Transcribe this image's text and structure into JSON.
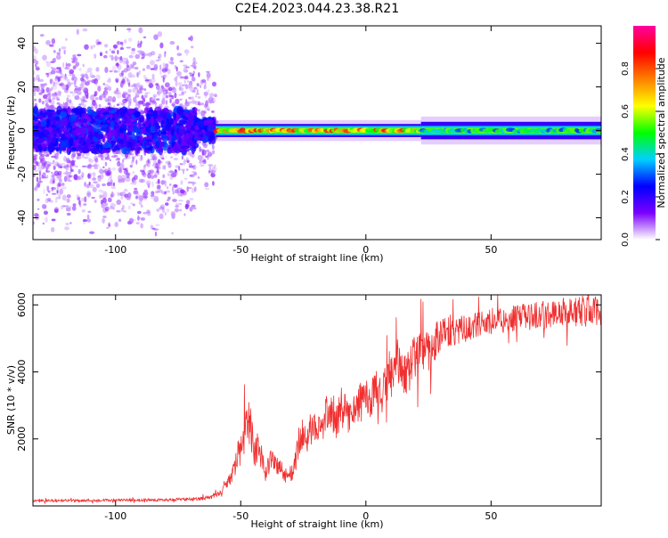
{
  "title": "C2E4.2023.044.23.38.R21",
  "colors": {
    "snr_line": "#f03030",
    "frame": "#000000"
  },
  "chart_data": [
    {
      "type": "heatmap",
      "xlabel": "Height of straight line (km)",
      "ylabel": "Frequency (Hz)",
      "xlim": [
        -133,
        94
      ],
      "ylim": [
        -50,
        48
      ],
      "x_ticks": [
        -100,
        -50,
        0,
        50
      ],
      "y_ticks": [
        -40,
        -20,
        0,
        20,
        40
      ],
      "colorbar": {
        "label": "Normalized spectral amplitude",
        "range": [
          0,
          1
        ],
        "ticks": [
          0.0,
          0.2,
          0.4,
          0.6,
          0.8
        ],
        "tick_labels": [
          "0.0",
          "0.2",
          "0.4",
          "0.6",
          "0.8"
        ],
        "stops": [
          "#ffffff",
          "#7a00ff",
          "#0000ff",
          "#00d0ff",
          "#00ff00",
          "#ffff00",
          "#ff8000",
          "#ff0000",
          "#ff00a0"
        ]
      },
      "segments": [
        {
          "x": [
            -133,
            -68
          ],
          "band_center_hz": 0,
          "core_half_width_hz": 6,
          "scatter_half_width_hz": 48,
          "amplitude": 0.12
        },
        {
          "x": [
            -68,
            -60
          ],
          "band_center_hz": 0,
          "core_half_width_hz": 3,
          "scatter_half_width_hz": 30,
          "amplitude": 0.35
        },
        {
          "x": [
            -60,
            22
          ],
          "band_center_hz": 0,
          "core_half_width_hz": 1.5,
          "envelope_half_width_hz": 3,
          "amplitude": 0.9
        },
        {
          "x": [
            22,
            94
          ],
          "band_center_hz": 0,
          "core_half_width_hz": 1.5,
          "envelope_half_width_hz": 4,
          "amplitude": 0.55
        }
      ]
    },
    {
      "type": "line",
      "xlabel": "Height of straight line (km)",
      "ylabel": "SNR (10 * v/v)",
      "xlim": [
        -133,
        94
      ],
      "ylim": [
        0,
        6300
      ],
      "x_ticks": [
        -100,
        -50,
        0,
        50
      ],
      "y_ticks": [
        2000,
        4000,
        6000
      ],
      "series": [
        {
          "x": [
            -133,
            -120,
            -100,
            -80,
            -70,
            -62,
            -58,
            -55,
            -52,
            -50,
            -48,
            -46,
            -45,
            -43,
            -40,
            -38,
            -35,
            -32,
            -30,
            -28,
            -26,
            -24,
            -22,
            -20,
            -18,
            -16,
            -14,
            -12,
            -10,
            -8,
            -6,
            -4,
            -2,
            0,
            2,
            4,
            6,
            8,
            10,
            12,
            14,
            16,
            18,
            20,
            22,
            25,
            28,
            30,
            32,
            35,
            40,
            50,
            60,
            70,
            80,
            94
          ],
          "y": [
            150,
            160,
            170,
            180,
            200,
            250,
            400,
            700,
            1200,
            1800,
            2400,
            2600,
            1500,
            1800,
            1000,
            1400,
            1200,
            900,
            1000,
            1300,
            2200,
            1900,
            2300,
            2500,
            2200,
            2700,
            2900,
            2500,
            3000,
            2700,
            2600,
            3000,
            3100,
            3300,
            3200,
            3400,
            3300,
            3600,
            3800,
            4300,
            4400,
            3800,
            4200,
            4500,
            4800,
            4600,
            4900,
            5200,
            5300,
            5200,
            5300,
            5500,
            5600,
            5700,
            5800,
            5800
          ],
          "noise_amplitude": [
            30,
            40,
            40,
            40,
            50,
            60,
            80,
            150,
            350,
            600,
            700,
            700,
            500,
            450,
            300,
            400,
            300,
            250,
            300,
            350,
            600,
            400,
            500,
            500,
            450,
            550,
            600,
            500,
            600,
            550,
            500,
            550,
            600,
            650,
            600,
            650,
            600,
            650,
            700,
            750,
            700,
            650,
            650,
            700,
            700,
            600,
            600,
            550,
            550,
            450,
            400,
            380,
            400,
            420,
            450,
            450
          ]
        }
      ]
    }
  ]
}
